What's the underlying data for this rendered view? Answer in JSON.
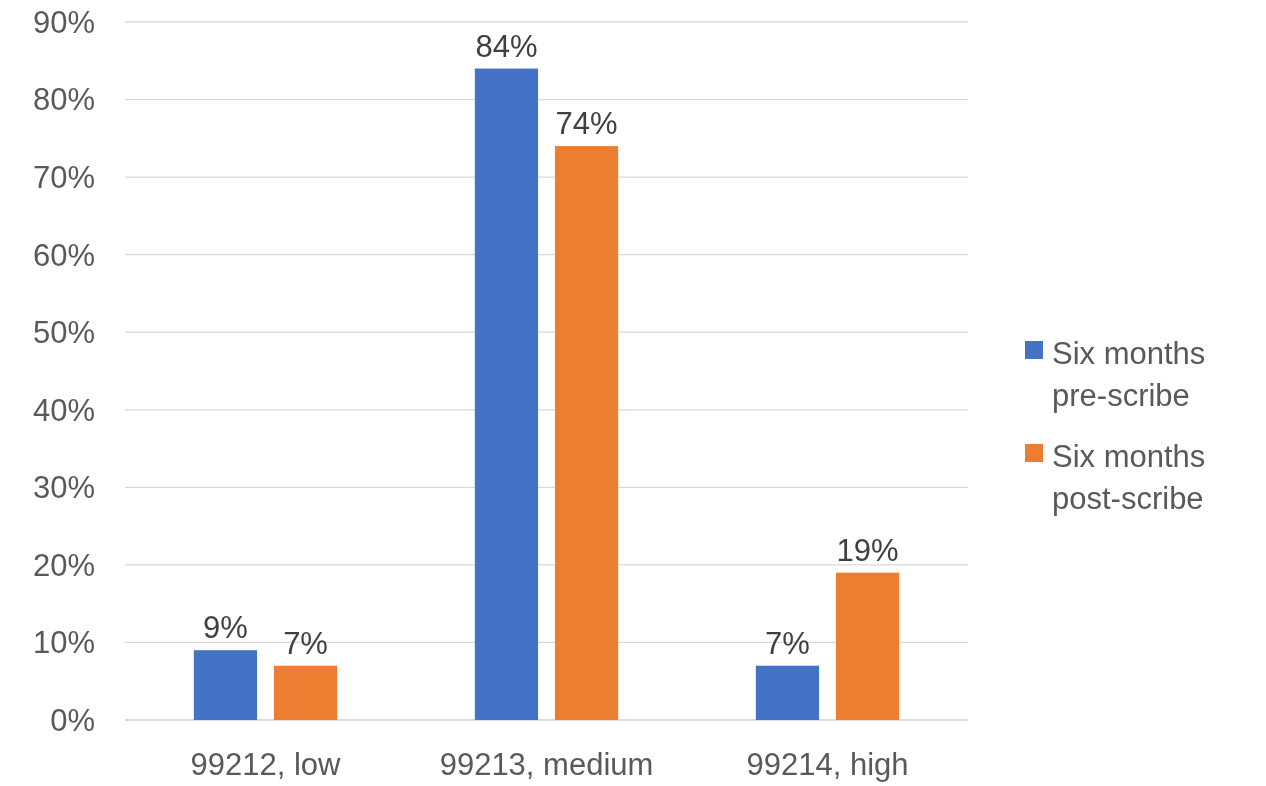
{
  "chart_data": {
    "type": "bar",
    "categories": [
      "99212, low",
      "99213, medium",
      "99214, high"
    ],
    "series": [
      {
        "name": "Six months pre-scribe",
        "color": "#4472c4",
        "values": [
          9,
          84,
          7
        ]
      },
      {
        "name": "Six months post-scribe",
        "color": "#ed7d31",
        "values": [
          7,
          74,
          19
        ]
      }
    ],
    "ylim": [
      0,
      90
    ],
    "yticks": [
      {
        "value": 0,
        "label": "0%"
      },
      {
        "value": 10,
        "label": "10%"
      },
      {
        "value": 20,
        "label": "20%"
      },
      {
        "value": 30,
        "label": "30%"
      },
      {
        "value": 40,
        "label": "40%"
      },
      {
        "value": 50,
        "label": "50%"
      },
      {
        "value": 60,
        "label": "60%"
      },
      {
        "value": 70,
        "label": "70%"
      },
      {
        "value": 80,
        "label": "80%"
      },
      {
        "value": 90,
        "label": "90%"
      }
    ],
    "value_labels": [
      [
        "9%",
        "84%",
        "7%"
      ],
      [
        "7%",
        "74%",
        "19%"
      ]
    ],
    "grid": "y",
    "legend": "right"
  }
}
